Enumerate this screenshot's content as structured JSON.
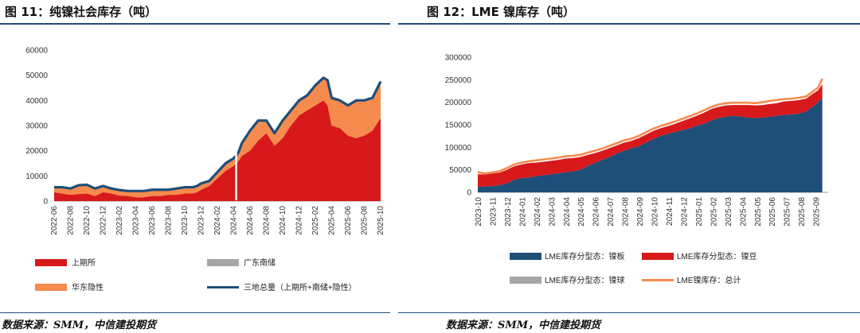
{
  "left": {
    "title": "图 11：纯镍社会库存（吨）",
    "source": "数据来源：SMM，中信建投期货",
    "chart_data": {
      "type": "area",
      "title": "纯镍社会库存（吨）",
      "ylim": [
        0,
        60000
      ],
      "yticks": [
        "0",
        "10000",
        "20000",
        "30000",
        "40000",
        "50000",
        "60000"
      ],
      "xticks": [
        "2022-06",
        "2022-08",
        "2022-10",
        "2022-12",
        "2023-02",
        "2023-04",
        "2023-06",
        "2023-08",
        "2023-10",
        "2023-12",
        "2024-02",
        "2024-04",
        "2024-06",
        "2024-08",
        "2024-10",
        "2024-12",
        "2025-02",
        "2025-04",
        "2025-06",
        "2025-08",
        "2025-10"
      ],
      "x_months": [
        0,
        1,
        2,
        3,
        4,
        5,
        6,
        7,
        8,
        9,
        10,
        11,
        12,
        13,
        14,
        15,
        16,
        17,
        17.5,
        18,
        19,
        20,
        21,
        22,
        22.3,
        22.6,
        23,
        24,
        25,
        26,
        27,
        28,
        29,
        30,
        31,
        32,
        33,
        33.5,
        34,
        35,
        36,
        37,
        38,
        39,
        40
      ],
      "series": [
        {
          "name": "上期所",
          "color": "#d7191c",
          "values": [
            3500,
            3000,
            2500,
            2800,
            3000,
            2000,
            3500,
            3000,
            2200,
            2000,
            1500,
            1500,
            2000,
            2000,
            2500,
            2500,
            3000,
            3000,
            3500,
            4500,
            6000,
            9000,
            12000,
            14000,
            15000,
            16000,
            18000,
            20000,
            24000,
            27000,
            22000,
            25000,
            30000,
            34000,
            36000,
            38000,
            40000,
            38000,
            30000,
            29000,
            26000,
            25000,
            26000,
            28000,
            33000
          ]
        },
        {
          "name": "广东南储",
          "color": "#a6a6a6",
          "values": [
            0,
            0,
            0,
            0,
            0,
            0,
            0,
            0,
            0,
            0,
            0,
            0,
            0,
            0,
            0,
            0,
            0,
            0,
            0,
            0,
            0,
            0,
            0,
            0,
            0,
            0,
            0,
            0,
            0,
            0,
            0,
            0,
            0,
            0,
            0,
            0,
            0,
            0,
            0,
            0,
            0,
            0,
            0,
            0,
            0
          ]
        },
        {
          "name": "华东隐性",
          "color": "#f58b4c",
          "values": [
            2000,
            2500,
            2500,
            3500,
            3500,
            3000,
            2500,
            2000,
            2200,
            2000,
            2500,
            2500,
            2500,
            2500,
            2000,
            2500,
            2500,
            2500,
            2500,
            2500,
            2000,
            2500,
            3000,
            3000,
            3000,
            3500,
            5000,
            8000,
            8000,
            5000,
            5000,
            7000,
            6000,
            6000,
            6000,
            8000,
            9000,
            10000,
            11000,
            11000,
            12000,
            15000,
            14000,
            13000,
            14500
          ]
        }
      ],
      "line": {
        "name": "三地总量（上期所+南储+隐性）",
        "color": "#1f4e79",
        "values": [
          5500,
          5500,
          5000,
          6300,
          6500,
          5000,
          6000,
          5000,
          4400,
          4000,
          4000,
          4000,
          4500,
          4500,
          4500,
          5000,
          5500,
          5500,
          6000,
          7000,
          8000,
          11500,
          15000,
          17000,
          18000,
          19500,
          23000,
          28000,
          32000,
          32000,
          27000,
          32000,
          36000,
          40000,
          42000,
          46000,
          49000,
          48000,
          41000,
          40000,
          38000,
          40000,
          40000,
          41000,
          47500
        ]
      },
      "legend": [
        "上期所",
        "广东南储",
        "华东隐性",
        "三地总量（上期所+南储+隐性）"
      ]
    }
  },
  "right": {
    "title": "图 12：LME 镍库存（吨）",
    "source": "数据来源：SMM，中信建投期货",
    "chart_data": {
      "type": "area",
      "title": "LME 镍库存（吨）",
      "ylim": [
        0,
        300000
      ],
      "yticks": [
        "0",
        "50000",
        "100000",
        "150000",
        "200000",
        "250000",
        "300000"
      ],
      "xticks": [
        "2023-10",
        "2023-11",
        "2023-12",
        "2024-01",
        "2024-02",
        "2024-03",
        "2024-04",
        "2024-05",
        "2024-06",
        "2024-07",
        "2024-08",
        "2024-09",
        "2024-10",
        "2024-11",
        "2024-12",
        "2025-01",
        "2025-02",
        "2025-03",
        "2025-04",
        "2025-05",
        "2025-06",
        "2025-07",
        "2025-08",
        "2025-09"
      ],
      "x_months": [
        0,
        0.5,
        1,
        1.5,
        2,
        2.5,
        3,
        3.5,
        4,
        4.5,
        5,
        5.5,
        6,
        6.5,
        7,
        7.5,
        8,
        8.5,
        9,
        9.5,
        10,
        10.5,
        11,
        11.5,
        12,
        12.5,
        13,
        13.5,
        14,
        14.5,
        15,
        15.5,
        16,
        16.5,
        17,
        17.5,
        18,
        18.5,
        19,
        19.5,
        20,
        20.5,
        21,
        21.5,
        22,
        22.5,
        23,
        23.3,
        23.6
      ],
      "series": [
        {
          "name": "LME库存分型态：镍板",
          "color": "#1f4e79",
          "values": [
            12000,
            13000,
            14000,
            16000,
            20000,
            28000,
            32000,
            33000,
            36000,
            38000,
            40000,
            42000,
            45000,
            46000,
            50000,
            58000,
            65000,
            72000,
            78000,
            86000,
            92000,
            98000,
            102000,
            110000,
            118000,
            125000,
            130000,
            134000,
            138000,
            142000,
            148000,
            152000,
            160000,
            165000,
            168000,
            170000,
            168000,
            166000,
            165000,
            166000,
            168000,
            170000,
            172000,
            173000,
            175000,
            180000,
            192000,
            200000,
            210000
          ]
        },
        {
          "name": "LME库存分型态：镍豆",
          "color": "#d7191c",
          "values": [
            28000,
            27000,
            28000,
            28000,
            30000,
            30000,
            30000,
            32000,
            30000,
            30000,
            30000,
            30000,
            30000,
            30000,
            28000,
            25000,
            22000,
            20000,
            20000,
            18000,
            18000,
            16000,
            18000,
            18000,
            18000,
            17000,
            17000,
            18000,
            20000,
            22000,
            22000,
            25000,
            25000,
            25000,
            25000,
            24000,
            26000,
            28000,
            28000,
            28000,
            28000,
            28000,
            30000,
            30000,
            30000,
            28000,
            28000,
            26000,
            30000
          ]
        },
        {
          "name": "LME库存分型态：镍球",
          "color": "#a6a6a6",
          "values": [
            0,
            0,
            0,
            0,
            0,
            0,
            0,
            0,
            0,
            0,
            0,
            0,
            0,
            0,
            0,
            0,
            0,
            0,
            0,
            0,
            0,
            0,
            0,
            0,
            0,
            0,
            0,
            0,
            0,
            0,
            0,
            0,
            0,
            0,
            0,
            0,
            0,
            0,
            0,
            0,
            0,
            0,
            0,
            0,
            0,
            0,
            0,
            0,
            0
          ]
        }
      ],
      "line": {
        "name": "LME镍库存：总计",
        "color": "#f58b4c",
        "values": [
          45000,
          42000,
          44000,
          47000,
          54000,
          62000,
          66000,
          69000,
          71000,
          73000,
          75000,
          77000,
          80000,
          81000,
          83000,
          88000,
          92000,
          97000,
          103000,
          109000,
          115000,
          119000,
          125000,
          133000,
          141000,
          147000,
          152000,
          157000,
          163000,
          169000,
          175000,
          182000,
          190000,
          195000,
          198000,
          199000,
          199000,
          199000,
          198000,
          200000,
          203000,
          205000,
          207000,
          208000,
          210000,
          213000,
          225000,
          232000,
          252000
        ]
      },
      "legend": [
        "LME库存分型态：镍板",
        "LME库存分型态：镍豆",
        "LME库存分型态：镍球",
        "LME镍库存：总计"
      ]
    }
  }
}
